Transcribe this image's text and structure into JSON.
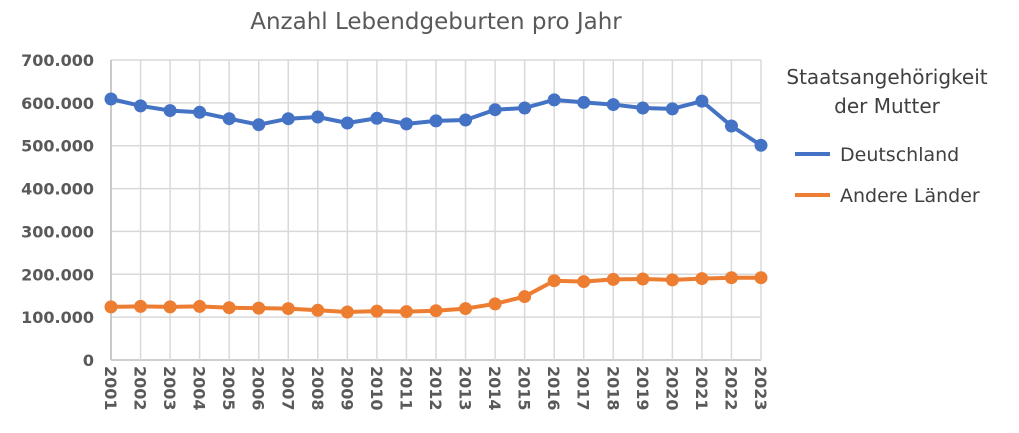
{
  "chart_data": {
    "type": "line",
    "title": "Anzahl Lebendgeburten pro Jahr",
    "xlabel": "",
    "ylabel": "",
    "ylim": [
      0,
      700000
    ],
    "yticks": [
      0,
      100000,
      200000,
      300000,
      400000,
      500000,
      600000,
      700000
    ],
    "ytick_labels": [
      "0",
      "100.000",
      "200.000",
      "300.000",
      "400.000",
      "500.000",
      "600.000",
      "700.000"
    ],
    "grid": true,
    "legend_position": "right",
    "legend_title_lines": [
      "Staatsangehörigkeit",
      "der Mutter"
    ],
    "x": [
      "2001",
      "2002",
      "2003",
      "2004",
      "2005",
      "2006",
      "2007",
      "2008",
      "2009",
      "2010",
      "2011",
      "2012",
      "2013",
      "2014",
      "2015",
      "2016",
      "2017",
      "2018",
      "2019",
      "2020",
      "2021",
      "2022",
      "2023"
    ],
    "series": [
      {
        "name": "Deutschland",
        "color": "#4472C4",
        "values": [
          609000,
          593000,
          582000,
          578000,
          563000,
          549000,
          563000,
          567000,
          553000,
          564000,
          551000,
          558000,
          560000,
          584000,
          588000,
          607000,
          601000,
          596000,
          588000,
          586000,
          604000,
          546000,
          501000
        ]
      },
      {
        "name": "Andere Länder",
        "color": "#ED7D31",
        "values": [
          124000,
          125000,
          124000,
          125000,
          122000,
          121000,
          120000,
          116000,
          112000,
          114000,
          113000,
          115000,
          120000,
          131000,
          148000,
          185000,
          183000,
          188000,
          189000,
          187000,
          190000,
          192000,
          192000
        ]
      }
    ]
  }
}
